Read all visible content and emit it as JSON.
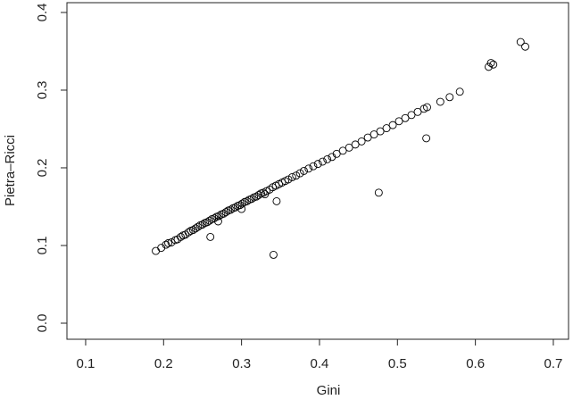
{
  "chart_data": {
    "type": "scatter",
    "xlabel": "Gini",
    "ylabel": "Pietra–Ricci",
    "x": [
      0.19,
      0.197,
      0.203,
      0.206,
      0.21,
      0.215,
      0.218,
      0.222,
      0.225,
      0.228,
      0.232,
      0.235,
      0.238,
      0.241,
      0.244,
      0.247,
      0.25,
      0.253,
      0.256,
      0.259,
      0.262,
      0.265,
      0.268,
      0.271,
      0.274,
      0.277,
      0.28,
      0.283,
      0.286,
      0.289,
      0.292,
      0.295,
      0.298,
      0.301,
      0.304,
      0.307,
      0.31,
      0.313,
      0.316,
      0.319,
      0.322,
      0.325,
      0.328,
      0.332,
      0.336,
      0.34,
      0.344,
      0.348,
      0.352,
      0.356,
      0.36,
      0.365,
      0.37,
      0.375,
      0.38,
      0.386,
      0.392,
      0.398,
      0.404,
      0.41,
      0.416,
      0.422,
      0.43,
      0.438,
      0.446,
      0.454,
      0.462,
      0.47,
      0.478,
      0.486,
      0.494,
      0.502,
      0.51,
      0.518,
      0.526,
      0.534,
      0.538,
      0.27,
      0.3,
      0.33,
      0.26,
      0.341,
      0.345,
      0.476,
      0.537,
      0.555,
      0.567,
      0.58,
      0.617,
      0.62,
      0.623,
      0.658,
      0.664
    ],
    "values": [
      0.093,
      0.097,
      0.101,
      0.103,
      0.104,
      0.107,
      0.108,
      0.111,
      0.113,
      0.114,
      0.117,
      0.119,
      0.12,
      0.122,
      0.124,
      0.126,
      0.127,
      0.129,
      0.13,
      0.132,
      0.134,
      0.135,
      0.137,
      0.138,
      0.14,
      0.141,
      0.143,
      0.145,
      0.146,
      0.148,
      0.149,
      0.151,
      0.152,
      0.154,
      0.156,
      0.157,
      0.159,
      0.16,
      0.162,
      0.163,
      0.165,
      0.167,
      0.168,
      0.17,
      0.172,
      0.175,
      0.177,
      0.179,
      0.181,
      0.183,
      0.185,
      0.188,
      0.19,
      0.193,
      0.196,
      0.199,
      0.202,
      0.205,
      0.208,
      0.211,
      0.214,
      0.218,
      0.222,
      0.226,
      0.23,
      0.234,
      0.239,
      0.243,
      0.247,
      0.251,
      0.255,
      0.26,
      0.264,
      0.268,
      0.272,
      0.276,
      0.278,
      0.131,
      0.147,
      0.166,
      0.111,
      0.088,
      0.157,
      0.168,
      0.238,
      0.285,
      0.291,
      0.298,
      0.33,
      0.335,
      0.333,
      0.362,
      0.356
    ],
    "color": "#000000",
    "xlim": [
      0.076,
      0.7195
    ],
    "ylim": [
      -0.0207,
      0.4126
    ],
    "xticks": [
      0.1,
      0.2,
      0.3,
      0.4,
      0.5,
      0.6,
      0.7
    ],
    "yticks": [
      {
        "value": 0,
        "label": "0.0"
      },
      0.1,
      0.2,
      0.3,
      0.4
    ]
  }
}
